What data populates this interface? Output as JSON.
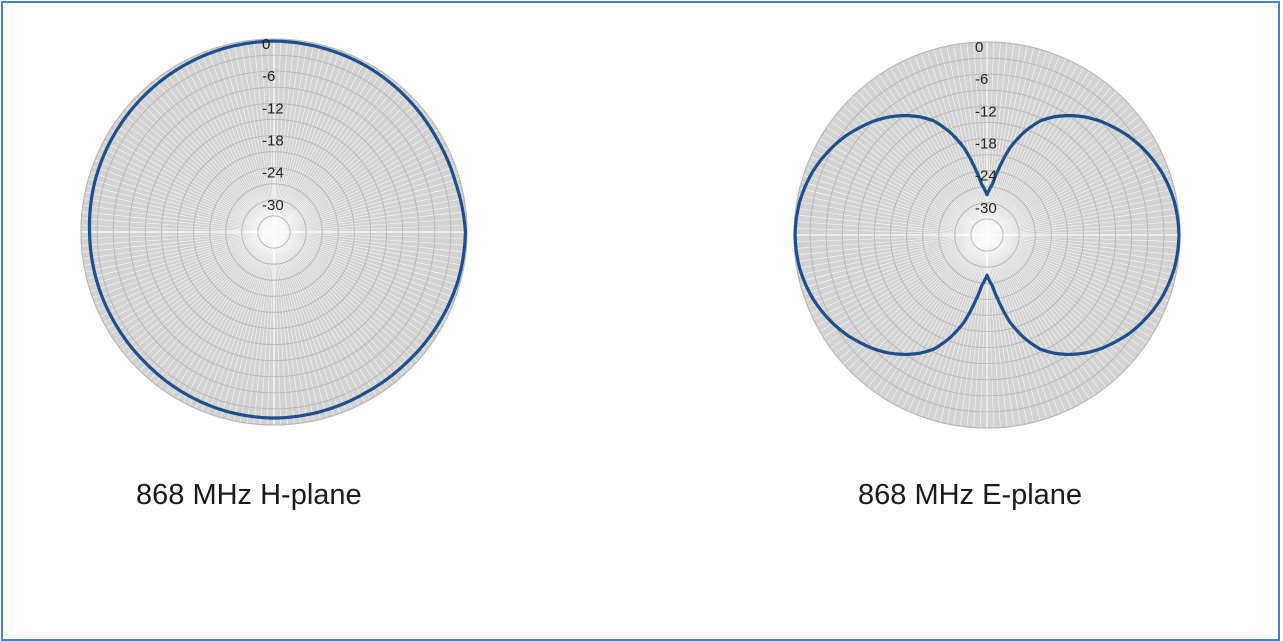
{
  "colors": {
    "ring": "#b9b9b9",
    "background": "#d2d2d2",
    "spoke": "#b5b5b5",
    "trace": "#1c4f8e",
    "tick_text": "#222222"
  },
  "chart_data": [
    {
      "type": "polar-line",
      "title": "868 MHz H-plane",
      "radial_ticks": [
        "0",
        "-6",
        "-12",
        "-18",
        "-24",
        "-30"
      ],
      "rlim_dB": [
        -36,
        0
      ],
      "angular_step_deg": 2,
      "grid": true,
      "series": [
        {
          "angles_deg": [
            0,
            15,
            30,
            45,
            60,
            75,
            90,
            105,
            120,
            135,
            150,
            165,
            180,
            195,
            210,
            225,
            240,
            255,
            270,
            285,
            300,
            315,
            330,
            345
          ],
          "values_dB": [
            -0.4,
            -0.5,
            -0.6,
            -0.8,
            -1.0,
            -0.9,
            -0.3,
            -0.5,
            -0.9,
            -1.3,
            -1.5,
            -1.4,
            -1.3,
            -1.4,
            -1.6,
            -1.8,
            -1.8,
            -1.7,
            -1.6,
            -1.3,
            -1.1,
            -0.9,
            -0.7,
            -0.5
          ]
        }
      ]
    },
    {
      "type": "polar-line",
      "title": "868 MHz E-plane",
      "radial_ticks": [
        "0",
        "-6",
        "-12",
        "-18",
        "-24",
        "-30"
      ],
      "rlim_dB": [
        -36,
        0
      ],
      "angular_step_deg": 2,
      "grid": true,
      "series": [
        {
          "angles_deg": [
            0,
            3,
            6,
            10,
            15,
            20,
            25,
            30,
            35,
            40,
            45,
            50,
            55,
            60,
            65,
            70,
            75,
            80,
            85,
            90,
            95,
            100,
            105,
            110,
            115,
            120,
            125,
            130,
            135,
            140,
            145,
            150,
            155,
            160,
            165,
            170,
            174,
            177,
            180,
            183,
            186,
            190,
            195,
            200,
            205,
            210,
            215,
            220,
            225,
            230,
            235,
            240,
            245,
            250,
            255,
            260,
            265,
            270,
            275,
            280,
            285,
            290,
            295,
            300,
            305,
            310,
            315,
            320,
            325,
            330,
            335,
            340,
            345,
            350,
            354,
            357
          ],
          "values_dB": [
            -28.5,
            -27.5,
            -26.5,
            -23.5,
            -19.0,
            -15.5,
            -12.5,
            -10.5,
            -8.8,
            -7.3,
            -6.0,
            -4.9,
            -3.8,
            -2.9,
            -2.1,
            -1.4,
            -0.9,
            -0.5,
            -0.3,
            -0.2,
            -0.3,
            -0.5,
            -0.9,
            -1.4,
            -2.1,
            -2.9,
            -3.8,
            -4.9,
            -6.0,
            -7.3,
            -8.8,
            -10.5,
            -12.5,
            -15.5,
            -19.0,
            -23.5,
            -26.5,
            -27.5,
            -28.5,
            -27.5,
            -26.5,
            -23.5,
            -19.0,
            -15.5,
            -12.5,
            -10.5,
            -8.8,
            -7.3,
            -6.0,
            -4.9,
            -3.8,
            -2.9,
            -2.1,
            -1.4,
            -0.9,
            -0.5,
            -0.3,
            -0.2,
            -0.3,
            -0.5,
            -0.9,
            -1.4,
            -2.1,
            -2.9,
            -3.8,
            -4.9,
            -6.0,
            -7.3,
            -8.8,
            -10.5,
            -12.5,
            -15.5,
            -19.0,
            -23.5,
            -26.5,
            -27.5
          ]
        }
      ]
    }
  ]
}
